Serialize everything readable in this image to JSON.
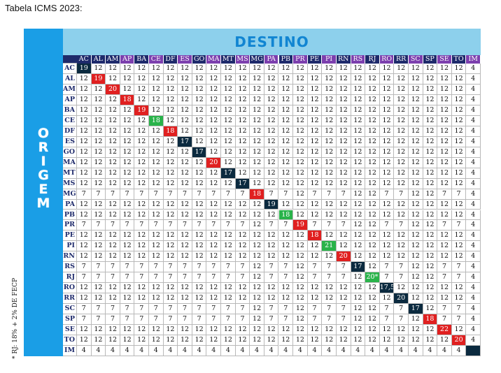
{
  "heading": "Tabela ICMS 2023:",
  "destino_label": "DESTINO",
  "origem_letters": [
    "O",
    "R",
    "I",
    "G",
    "E",
    "M"
  ],
  "footnote": "* RJ: 18% + 2% DE FECP",
  "colors": {
    "destino_bg": "#8dd0ec",
    "origem_bg": "#1a9ee6",
    "header_dark": "#1e2a6b",
    "header_purple": "#7c3fae",
    "diag_dark": "#0b2a3f",
    "diag_red": "#e02020",
    "diag_green": "#29b34a"
  },
  "states": [
    "AC",
    "AL",
    "AM",
    "AP",
    "BA",
    "CE",
    "DF",
    "ES",
    "GO",
    "MA",
    "MT",
    "MS",
    "MG",
    "PA",
    "PB",
    "PR",
    "PE",
    "PI",
    "RN",
    "RS",
    "RJ",
    "RO",
    "RR",
    "SC",
    "SP",
    "SE",
    "TO",
    "IM"
  ],
  "header_colors": [
    "dark",
    "dark",
    "dark",
    "purple",
    "dark",
    "purple",
    "dark",
    "purple",
    "dark",
    "purple",
    "dark",
    "purple",
    "dark",
    "purple",
    "dark",
    "purple",
    "dark",
    "purple",
    "dark",
    "purple",
    "dark",
    "purple",
    "dark",
    "purple",
    "dark",
    "purple",
    "dark",
    "purple"
  ],
  "diagonal": [
    "19",
    "19",
    "20",
    "18",
    "19",
    "18",
    "18",
    "17",
    "17",
    "20",
    "17",
    "17",
    "18",
    "19",
    "18",
    "19",
    "18",
    "21",
    "20",
    "17",
    "20*",
    "17,5",
    "20",
    "17",
    "18",
    "22",
    "20",
    ""
  ],
  "diagonal_colors": [
    "dark",
    "red",
    "red",
    "red",
    "red",
    "green",
    "red",
    "dark",
    "dark",
    "red",
    "dark",
    "dark",
    "red",
    "dark",
    "green",
    "red",
    "red",
    "green",
    "red",
    "dark",
    "green",
    "dark",
    "dark",
    "dark",
    "red",
    "red",
    "red",
    "dark"
  ],
  "row_type": [
    "12",
    "12",
    "12",
    "12",
    "12",
    "12",
    "12",
    "12",
    "12",
    "12",
    "12",
    "12",
    "7",
    "12",
    "12",
    "7",
    "12",
    "12",
    "12",
    "7",
    "7",
    "12",
    "12",
    "7",
    "7",
    "12",
    "12",
    "IM"
  ],
  "col_type": [
    "12",
    "12",
    "12",
    "12",
    "12",
    "12",
    "12",
    "12",
    "12",
    "12",
    "12",
    "12",
    "7",
    "12",
    "12",
    "7",
    "12",
    "12",
    "12",
    "7",
    "7",
    "12",
    "12",
    "7",
    "7",
    "12",
    "12",
    "IM"
  ],
  "values": {
    "twelve": "12",
    "seven": "7",
    "four": "4"
  }
}
